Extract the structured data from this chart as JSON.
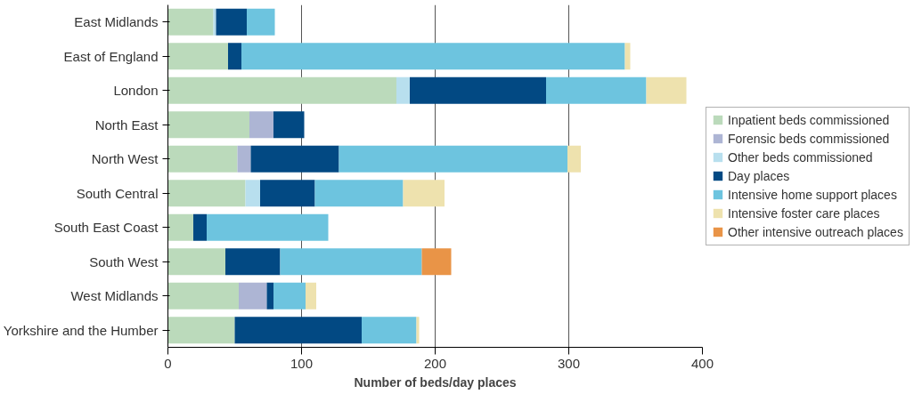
{
  "chart_data": {
    "type": "bar",
    "orientation": "horizontal",
    "stacked": true,
    "xlabel": "Number of beds/day places",
    "categories": [
      "East Midlands",
      "East of England",
      "London",
      "North East",
      "North West",
      "South Central",
      "South East Coast",
      "South West",
      "West Midlands",
      "Yorkshire and the Humber"
    ],
    "series": [
      {
        "name": "Inpatient beds commissioned",
        "color": "#bbdabb",
        "values": [
          34,
          45,
          171,
          61,
          52,
          58,
          19,
          43,
          53,
          50
        ]
      },
      {
        "name": "Forensic beds commissioned",
        "color": "#adb5d4",
        "values": [
          0,
          0,
          0,
          18,
          10,
          0,
          0,
          0,
          21,
          0
        ]
      },
      {
        "name": "Other beds commissioned",
        "color": "#b8dfee",
        "values": [
          2,
          0,
          10,
          0,
          0,
          11,
          0,
          0,
          0,
          0
        ]
      },
      {
        "name": "Day places",
        "color": "#024983",
        "values": [
          23,
          10,
          102,
          23,
          66,
          41,
          10,
          41,
          5,
          95
        ]
      },
      {
        "name": "Intensive home support places",
        "color": "#6dc4df",
        "values": [
          21,
          287,
          75,
          0,
          171,
          66,
          91,
          106,
          24,
          41
        ]
      },
      {
        "name": "Intensive foster care places",
        "color": "#eee2ae",
        "values": [
          0,
          4,
          30,
          0,
          10,
          31,
          0,
          0,
          8,
          2
        ]
      },
      {
        "name": "Other intensive outreach places",
        "color": "#e99447",
        "values": [
          0,
          0,
          0,
          0,
          0,
          0,
          0,
          22,
          0,
          0
        ]
      }
    ],
    "xlim": [
      0,
      400
    ],
    "xticks": [
      0,
      100,
      200,
      300,
      400
    ],
    "grid": "x",
    "legend": "right"
  }
}
